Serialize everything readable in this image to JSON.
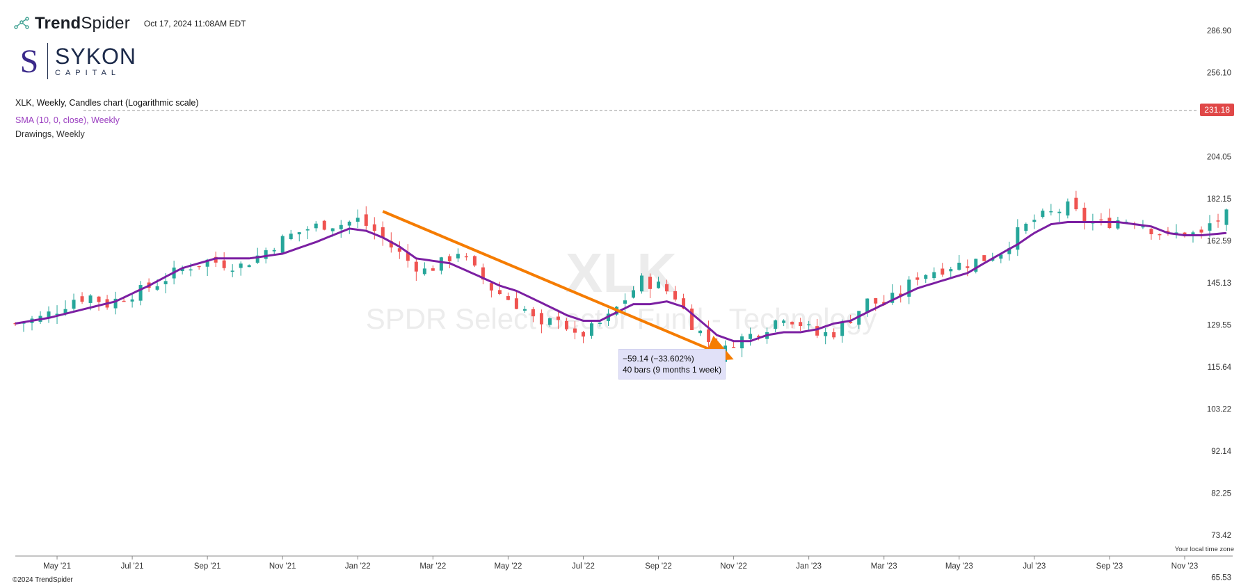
{
  "header": {
    "brand_prefix": "Trend",
    "brand_suffix": "Spider",
    "timestamp": "Oct 17, 2024 11:08AM EDT"
  },
  "logo": {
    "title": "SYKON",
    "subtitle": "CAPITAL",
    "mark": "S"
  },
  "legend": {
    "main": "XLK, Weekly, Candles chart (Logarithmic scale)",
    "sma": "SMA (10, 0, close), Weekly",
    "drawings": "Drawings, Weekly"
  },
  "watermark": {
    "symbol": "XLK",
    "name": "SPDR Select Sector Fund - Technology"
  },
  "price_tag": "231.18",
  "measure": {
    "line1": "−59.14 (−33.602%)",
    "line2": "40 bars (9 months 1 week)"
  },
  "footer": {
    "copyright": "©2024 TrendSpider",
    "timezone": "Your local time zone"
  },
  "colors": {
    "up": "#26a69a",
    "down": "#ef5350",
    "sma": "#7b1fa2",
    "trend": "#f57c00",
    "price_tag": "#e04848"
  },
  "chart_data": {
    "type": "candlestick",
    "title": "XLK, Weekly, Candles chart (Logarithmic scale)",
    "scale": "logarithmic",
    "y_ticks": [
      "286.90",
      "256.10",
      "204.05",
      "182.15",
      "162.59",
      "145.13",
      "129.55",
      "115.64",
      "103.22",
      "92.14",
      "82.25",
      "73.42",
      "65.53"
    ],
    "y_tick_values": [
      286.9,
      256.1,
      204.05,
      182.15,
      162.59,
      145.13,
      129.55,
      115.64,
      103.22,
      92.14,
      82.25,
      73.42,
      65.53
    ],
    "ylim": [
      62,
      300
    ],
    "x_labels": [
      "May '21",
      "Jul '21",
      "Sep '21",
      "Nov '21",
      "Jan '22",
      "Mar '22",
      "May '22",
      "Jul '22",
      "Sep '22",
      "Nov '22",
      "Jan '23",
      "Mar '23",
      "May '23",
      "Jul '23",
      "Sep '23",
      "Nov '23"
    ],
    "x_label_weeks": [
      5,
      14,
      23,
      32,
      41,
      50,
      59,
      68,
      77,
      86,
      95,
      104,
      113,
      122,
      131,
      140
    ],
    "week_range": [
      0,
      145
    ],
    "current_price": 231.18,
    "close_path": [
      [
        0,
        130
      ],
      [
        3,
        132
      ],
      [
        5,
        135
      ],
      [
        7,
        139
      ],
      [
        9,
        140
      ],
      [
        11,
        137
      ],
      [
        13,
        140
      ],
      [
        15,
        142
      ],
      [
        17,
        145
      ],
      [
        19,
        149
      ],
      [
        21,
        152
      ],
      [
        23,
        154
      ],
      [
        25,
        153
      ],
      [
        27,
        152
      ],
      [
        29,
        156
      ],
      [
        31,
        161
      ],
      [
        33,
        165
      ],
      [
        35,
        168
      ],
      [
        37,
        170
      ],
      [
        39,
        170
      ],
      [
        40,
        171
      ],
      [
        41,
        172
      ],
      [
        43,
        167
      ],
      [
        45,
        160
      ],
      [
        47,
        154
      ],
      [
        49,
        150
      ],
      [
        51,
        153
      ],
      [
        53,
        158
      ],
      [
        55,
        150
      ],
      [
        57,
        143
      ],
      [
        59,
        139
      ],
      [
        61,
        135
      ],
      [
        63,
        128
      ],
      [
        65,
        133
      ],
      [
        67,
        125
      ],
      [
        69,
        128
      ],
      [
        71,
        132
      ],
      [
        73,
        139
      ],
      [
        75,
        146
      ],
      [
        77,
        144
      ],
      [
        79,
        140
      ],
      [
        81,
        130
      ],
      [
        83,
        124
      ],
      [
        84,
        118
      ],
      [
        86,
        124
      ],
      [
        88,
        126
      ],
      [
        90,
        129
      ],
      [
        92,
        133
      ],
      [
        94,
        130
      ],
      [
        96,
        126
      ],
      [
        98,
        127
      ],
      [
        100,
        132
      ],
      [
        102,
        138
      ],
      [
        104,
        137
      ],
      [
        106,
        141
      ],
      [
        108,
        148
      ],
      [
        110,
        150
      ],
      [
        112,
        152
      ],
      [
        114,
        153
      ],
      [
        116,
        155
      ],
      [
        118,
        158
      ],
      [
        120,
        166
      ],
      [
        122,
        172
      ],
      [
        124,
        175
      ],
      [
        126,
        178
      ],
      [
        128,
        172
      ],
      [
        130,
        170
      ],
      [
        132,
        172
      ],
      [
        134,
        172
      ],
      [
        136,
        168
      ],
      [
        138,
        165
      ],
      [
        140,
        166
      ],
      [
        142,
        165
      ],
      [
        143,
        170
      ],
      [
        145,
        174
      ]
    ],
    "sma_path": [
      [
        0,
        130
      ],
      [
        4,
        132
      ],
      [
        8,
        135
      ],
      [
        12,
        138
      ],
      [
        16,
        144
      ],
      [
        20,
        151
      ],
      [
        24,
        155
      ],
      [
        28,
        155
      ],
      [
        32,
        157
      ],
      [
        36,
        162
      ],
      [
        40,
        168
      ],
      [
        42,
        167
      ],
      [
        44,
        164
      ],
      [
        46,
        160
      ],
      [
        48,
        155
      ],
      [
        50,
        154
      ],
      [
        52,
        153
      ],
      [
        54,
        150
      ],
      [
        56,
        147
      ],
      [
        58,
        144
      ],
      [
        60,
        142
      ],
      [
        62,
        139
      ],
      [
        64,
        136
      ],
      [
        66,
        133
      ],
      [
        68,
        131
      ],
      [
        70,
        131
      ],
      [
        72,
        134
      ],
      [
        74,
        137
      ],
      [
        76,
        137
      ],
      [
        78,
        138
      ],
      [
        80,
        136
      ],
      [
        82,
        131
      ],
      [
        84,
        126
      ],
      [
        86,
        124
      ],
      [
        88,
        124
      ],
      [
        90,
        126
      ],
      [
        92,
        127
      ],
      [
        94,
        127
      ],
      [
        96,
        128
      ],
      [
        98,
        130
      ],
      [
        100,
        131
      ],
      [
        102,
        134
      ],
      [
        104,
        137
      ],
      [
        106,
        140
      ],
      [
        108,
        143
      ],
      [
        110,
        145
      ],
      [
        112,
        147
      ],
      [
        114,
        149
      ],
      [
        116,
        153
      ],
      [
        118,
        157
      ],
      [
        120,
        161
      ],
      [
        122,
        166
      ],
      [
        124,
        170
      ],
      [
        126,
        171
      ],
      [
        128,
        171
      ],
      [
        130,
        171
      ],
      [
        132,
        171
      ],
      [
        134,
        170
      ],
      [
        136,
        169
      ],
      [
        138,
        166
      ],
      [
        140,
        165
      ],
      [
        142,
        165
      ],
      [
        145,
        166
      ]
    ],
    "trendline": {
      "start": [
        44,
        176
      ],
      "end": [
        86,
        118
      ]
    },
    "change": -59.14,
    "change_pct": -33.602,
    "bars": 40
  }
}
